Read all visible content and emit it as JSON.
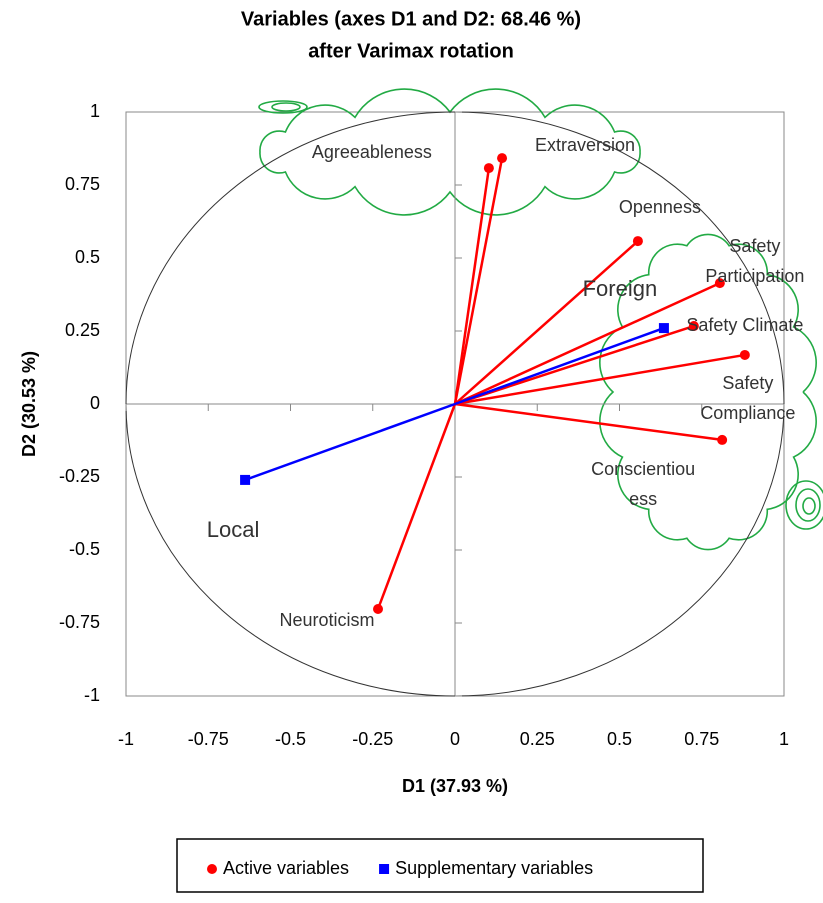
{
  "chart_data": {
    "type": "biplot",
    "title": "Variables (axes D1 and D2: 68.46 %)",
    "subtitle": "after Varimax rotation",
    "x_label": "D1 (37.93 %)",
    "y_label": "D2 (30.53 %)",
    "xlim": [
      -1,
      1
    ],
    "ylim": [
      -1,
      1
    ],
    "xticks": [
      -1,
      -0.75,
      -0.5,
      -0.25,
      0,
      0.25,
      0.5,
      0.75,
      1
    ],
    "yticks": [
      -1,
      -0.75,
      -0.5,
      -0.25,
      0,
      0.25,
      0.5,
      0.75,
      1
    ],
    "unit_circle": true,
    "series": [
      {
        "name": "Active variables",
        "color": "#ff0000",
        "marker": "circle",
        "labels": [
          [
            "Agreeableness"
          ],
          [
            "Extraversion"
          ],
          [
            "Openness"
          ],
          [
            "Safety",
            "Participation"
          ],
          [
            "Safety Climate"
          ],
          [
            "Safety",
            "Compliance"
          ],
          [
            "Conscientiou",
            "ess"
          ],
          [
            "Neuroticism"
          ]
        ],
        "x": [
          0.103,
          0.143,
          0.556,
          0.805,
          0.726,
          0.881,
          0.812,
          -0.234
        ],
        "y": [
          0.808,
          0.842,
          0.558,
          0.414,
          0.267,
          0.168,
          -0.123,
          -0.702
        ]
      },
      {
        "name": "Supplementary variables",
        "color": "#0000ff",
        "marker": "square",
        "labels": [
          [
            "Foreign"
          ],
          [
            "Local"
          ]
        ],
        "x": [
          0.635,
          -0.638
        ],
        "y": [
          0.26,
          -0.26
        ]
      }
    ]
  }
}
